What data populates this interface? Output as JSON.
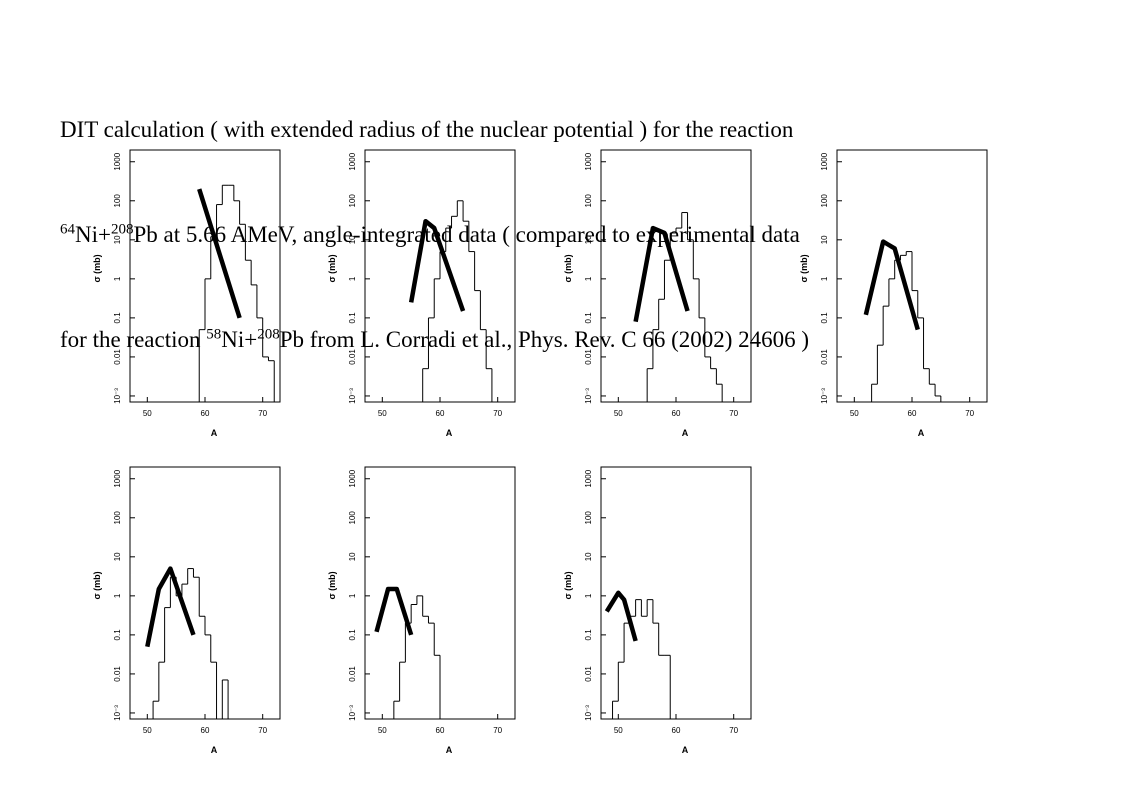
{
  "heading": [
    [
      "DIT calculation ( with extended radius of the nuclear potential ) for the reaction"
    ],
    [
      "64",
      "Ni+",
      "208",
      "Pb at 5.66 AMeV, angle-integrated data ( compared to experimental data"
    ],
    [
      "for the reaction ",
      "58",
      "Ni+",
      "208",
      "Pb from L. Corradi et al., Phys. Rev. C 66 (2002) 24606 )"
    ]
  ],
  "chart_data": [
    {
      "type": "histogram",
      "xlabel": "A",
      "ylabel": "σ (mb)",
      "log_y": true,
      "xlim": [
        47,
        73
      ],
      "xticks": [
        50,
        60,
        70
      ],
      "ylim": [
        0.0007,
        2000
      ],
      "yticks": [
        {
          "value": 0.001,
          "label": "10⁻³"
        },
        0.01,
        0.1,
        1,
        10,
        100,
        1000
      ],
      "bins": [
        59,
        60,
        61,
        62,
        63,
        64,
        65,
        66,
        67,
        68,
        69,
        70,
        71,
        72
      ],
      "counts": [
        0.05,
        1,
        12,
        80,
        250,
        250,
        100,
        25,
        3,
        0.7,
        0.1,
        0.01,
        0.008
      ],
      "line": {
        "x": [
          59,
          66
        ],
        "y": [
          200,
          0.1
        ]
      }
    },
    {
      "type": "histogram",
      "xlabel": "A",
      "ylabel": "σ (mb)",
      "log_y": true,
      "xlim": [
        47,
        73
      ],
      "xticks": [
        50,
        60,
        70
      ],
      "ylim": [
        0.0007,
        2000
      ],
      "yticks": [
        {
          "value": 0.001,
          "label": "10⁻³"
        },
        0.01,
        0.1,
        1,
        10,
        100,
        1000
      ],
      "bins": [
        57,
        58,
        59,
        60,
        61,
        62,
        63,
        64,
        65,
        66,
        67,
        68,
        69
      ],
      "counts": [
        0.005,
        0.1,
        1,
        5,
        20,
        40,
        100,
        30,
        5,
        0.5,
        0.05,
        0.005
      ],
      "line": {
        "x": [
          55,
          57.5,
          59,
          64
        ],
        "y": [
          0.25,
          30,
          20,
          0.15
        ]
      }
    },
    {
      "type": "histogram",
      "xlabel": "A",
      "ylabel": "σ (mb)",
      "log_y": true,
      "xlim": [
        47,
        73
      ],
      "xticks": [
        50,
        60,
        70
      ],
      "ylim": [
        0.0007,
        2000
      ],
      "yticks": [
        {
          "value": 0.001,
          "label": "10⁻³"
        },
        0.01,
        0.1,
        1,
        10,
        100,
        1000
      ],
      "bins": [
        55,
        56,
        57,
        58,
        59,
        60,
        61,
        62,
        63,
        64,
        65,
        66,
        67,
        68
      ],
      "counts": [
        0.005,
        0.05,
        0.3,
        3,
        15,
        20,
        50,
        10,
        1,
        0.1,
        0.01,
        0.005,
        0.002
      ],
      "line": {
        "x": [
          53,
          56,
          58,
          62
        ],
        "y": [
          0.08,
          20,
          15,
          0.15
        ]
      }
    },
    {
      "type": "histogram",
      "xlabel": "A",
      "ylabel": "σ (mb)",
      "log_y": true,
      "xlim": [
        47,
        73
      ],
      "xticks": [
        50,
        60,
        70
      ],
      "ylim": [
        0.0007,
        2000
      ],
      "yticks": [
        {
          "value": 0.001,
          "label": "10⁻³"
        },
        0.01,
        0.1,
        1,
        10,
        100,
        1000
      ],
      "bins": [
        53,
        54,
        55,
        56,
        57,
        58,
        59,
        60,
        61,
        62,
        63,
        64,
        65
      ],
      "counts": [
        0.002,
        0.02,
        0.2,
        1,
        3,
        4,
        5,
        0.5,
        0.1,
        0.005,
        0.002,
        0.001
      ],
      "line": {
        "x": [
          52,
          55,
          57,
          61
        ],
        "y": [
          0.12,
          9,
          6,
          0.05
        ]
      }
    },
    {
      "type": "histogram",
      "xlabel": "A",
      "ylabel": "σ (mb)",
      "log_y": true,
      "xlim": [
        47,
        73
      ],
      "xticks": [
        50,
        60,
        70
      ],
      "ylim": [
        0.0007,
        2000
      ],
      "yticks": [
        {
          "value": 0.001,
          "label": "10⁻³"
        },
        0.01,
        0.1,
        1,
        10,
        100,
        1000
      ],
      "bins": [
        51,
        52,
        53,
        54,
        55,
        56,
        57,
        58,
        59,
        60,
        61,
        62,
        63,
        64
      ],
      "counts": [
        0.002,
        0.02,
        0.5,
        3,
        1,
        2,
        5,
        3,
        0.3,
        0.1,
        0.02,
        null,
        0.007
      ],
      "line": {
        "x": [
          50,
          52,
          54,
          58
        ],
        "y": [
          0.05,
          1.5,
          5,
          0.1
        ]
      }
    },
    {
      "type": "histogram",
      "xlabel": "A",
      "ylabel": "σ (mb)",
      "log_y": true,
      "xlim": [
        47,
        73
      ],
      "xticks": [
        50,
        60,
        70
      ],
      "ylim": [
        0.0007,
        2000
      ],
      "yticks": [
        {
          "value": 0.001,
          "label": "10⁻³"
        },
        0.01,
        0.1,
        1,
        10,
        100,
        1000
      ],
      "bins": [
        52,
        53,
        54,
        55,
        56,
        57,
        58,
        59,
        60
      ],
      "counts": [
        0.002,
        0.02,
        0.2,
        0.6,
        1,
        0.3,
        0.2,
        0.03
      ],
      "line": {
        "x": [
          49,
          51,
          52.5,
          54,
          55
        ],
        "y": [
          0.12,
          1.5,
          1.5,
          0.3,
          0.1
        ]
      }
    },
    {
      "type": "histogram",
      "xlabel": "A",
      "ylabel": "σ (mb)",
      "log_y": true,
      "xlim": [
        47,
        73
      ],
      "xticks": [
        50,
        60,
        70
      ],
      "ylim": [
        0.0007,
        2000
      ],
      "yticks": [
        {
          "value": 0.001,
          "label": "10⁻³"
        },
        0.01,
        0.1,
        1,
        10,
        100,
        1000
      ],
      "bins": [
        49,
        50,
        51,
        52,
        53,
        54,
        55,
        56,
        57,
        58,
        59
      ],
      "counts": [
        0.002,
        0.02,
        0.2,
        0.3,
        0.8,
        0.3,
        0.8,
        0.2,
        0.03,
        0.03
      ],
      "line": {
        "x": [
          48,
          50,
          51,
          53
        ],
        "y": [
          0.4,
          1.2,
          0.8,
          0.07
        ]
      }
    }
  ]
}
